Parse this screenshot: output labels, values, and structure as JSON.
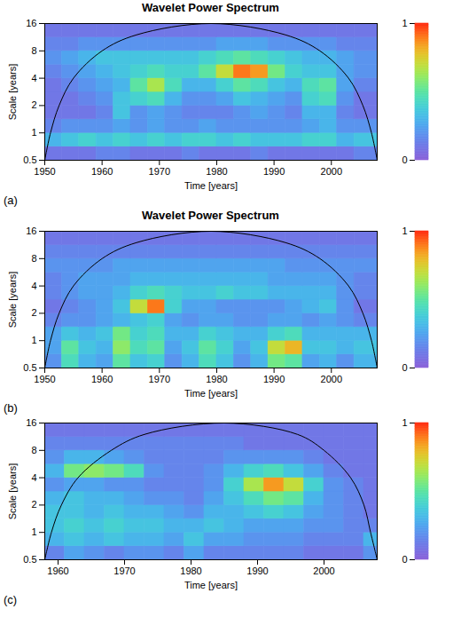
{
  "chart_data": [
    {
      "type": "heatmap",
      "title": "Wavelet Power Spectrum",
      "panel": "(a)",
      "x_label": "Time [years]",
      "y_label": "Scale [years]",
      "xlim": [
        1950,
        2008
      ],
      "xticks": [
        1950,
        1960,
        1970,
        1980,
        1990,
        2000
      ],
      "ylim": [
        0.5,
        16
      ],
      "yticks": [
        0.5,
        1,
        2,
        4,
        8,
        16
      ],
      "log": "y",
      "time_edges": [
        1950,
        1953,
        1956,
        1959,
        1962,
        1965,
        1968,
        1971,
        1974,
        1977,
        1980,
        1983,
        1986,
        1989,
        1992,
        1995,
        1998,
        2001,
        2004,
        2008
      ],
      "scale_edges": [
        0.5,
        0.707,
        1,
        1.414,
        2,
        2.828,
        4,
        5.657,
        8,
        11.31,
        16
      ],
      "power": [
        [
          0.1,
          0.1,
          0.1,
          0.15,
          0.15,
          0.1,
          0.1,
          0.1,
          0.15,
          0.1,
          0.1,
          0.1,
          0.15,
          0.1,
          0.1,
          0.1,
          0.1,
          0.1,
          0.15
        ],
        [
          0.3,
          0.35,
          0.4,
          0.35,
          0.4,
          0.35,
          0.4,
          0.35,
          0.4,
          0.4,
          0.35,
          0.4,
          0.35,
          0.35,
          0.35,
          0.4,
          0.4,
          0.3,
          0.35
        ],
        [
          0.15,
          0.2,
          0.2,
          0.2,
          0.25,
          0.2,
          0.25,
          0.2,
          0.2,
          0.25,
          0.2,
          0.2,
          0.2,
          0.2,
          0.2,
          0.25,
          0.3,
          0.2,
          0.2
        ],
        [
          0.1,
          0.1,
          0.1,
          0.15,
          0.35,
          0.2,
          0.25,
          0.2,
          0.15,
          0.15,
          0.15,
          0.2,
          0.25,
          0.2,
          0.15,
          0.3,
          0.3,
          0.15,
          0.1
        ],
        [
          0.1,
          0.1,
          0.15,
          0.2,
          0.35,
          0.4,
          0.45,
          0.3,
          0.2,
          0.2,
          0.25,
          0.35,
          0.3,
          0.25,
          0.2,
          0.4,
          0.45,
          0.2,
          0.1
        ],
        [
          0.1,
          0.15,
          0.2,
          0.25,
          0.3,
          0.5,
          0.65,
          0.45,
          0.3,
          0.3,
          0.4,
          0.5,
          0.45,
          0.35,
          0.3,
          0.45,
          0.5,
          0.25,
          0.15
        ],
        [
          0.15,
          0.2,
          0.25,
          0.3,
          0.35,
          0.4,
          0.45,
          0.4,
          0.4,
          0.5,
          0.7,
          0.9,
          0.85,
          0.55,
          0.4,
          0.35,
          0.35,
          0.25,
          0.2
        ],
        [
          0.2,
          0.25,
          0.3,
          0.35,
          0.35,
          0.35,
          0.35,
          0.35,
          0.35,
          0.4,
          0.45,
          0.5,
          0.45,
          0.4,
          0.35,
          0.3,
          0.3,
          0.25,
          0.2
        ],
        [
          0.15,
          0.15,
          0.2,
          0.2,
          0.2,
          0.2,
          0.2,
          0.2,
          0.2,
          0.2,
          0.25,
          0.25,
          0.25,
          0.2,
          0.2,
          0.2,
          0.2,
          0.15,
          0.15
        ],
        [
          0.1,
          0.1,
          0.1,
          0.1,
          0.1,
          0.1,
          0.1,
          0.1,
          0.1,
          0.1,
          0.1,
          0.1,
          0.1,
          0.1,
          0.1,
          0.1,
          0.1,
          0.1,
          0.1
        ]
      ],
      "cone_of_influence": {
        "x": [
          1950,
          1951,
          1952.5,
          1955,
          1960,
          1966,
          1979,
          1992,
          1998,
          2003,
          2005.5,
          2007,
          2008
        ],
        "y": [
          0.5,
          1,
          2,
          4,
          8,
          12,
          16,
          12,
          8,
          4,
          2,
          1,
          0.5
        ]
      },
      "color_bar": {
        "range": [
          0,
          1
        ],
        "ticks": [
          0,
          1
        ]
      }
    },
    {
      "type": "heatmap",
      "title": "Wavelet Power Spectrum",
      "panel": "(b)",
      "x_label": "Time [years]",
      "y_label": "Scale [years]",
      "xlim": [
        1950,
        2008
      ],
      "xticks": [
        1950,
        1960,
        1970,
        1980,
        1990,
        2000
      ],
      "ylim": [
        0.5,
        16
      ],
      "yticks": [
        0.5,
        1,
        2,
        4,
        8,
        16
      ],
      "log": "y",
      "time_edges": [
        1950,
        1953,
        1956,
        1959,
        1962,
        1965,
        1968,
        1971,
        1974,
        1977,
        1980,
        1983,
        1986,
        1989,
        1992,
        1995,
        1998,
        2001,
        2004,
        2008
      ],
      "scale_edges": [
        0.5,
        0.707,
        1,
        1.414,
        2,
        2.828,
        4,
        5.657,
        8,
        11.31,
        16
      ],
      "power": [
        [
          0.2,
          0.45,
          0.3,
          0.25,
          0.5,
          0.35,
          0.4,
          0.2,
          0.3,
          0.45,
          0.35,
          0.2,
          0.3,
          0.55,
          0.5,
          0.25,
          0.3,
          0.2,
          0.3
        ],
        [
          0.25,
          0.5,
          0.35,
          0.3,
          0.6,
          0.45,
          0.5,
          0.25,
          0.35,
          0.5,
          0.4,
          0.25,
          0.35,
          0.7,
          0.8,
          0.35,
          0.35,
          0.3,
          0.35
        ],
        [
          0.25,
          0.35,
          0.3,
          0.35,
          0.55,
          0.4,
          0.45,
          0.3,
          0.3,
          0.4,
          0.35,
          0.3,
          0.3,
          0.4,
          0.45,
          0.3,
          0.3,
          0.3,
          0.3
        ],
        [
          0.15,
          0.2,
          0.2,
          0.25,
          0.3,
          0.35,
          0.4,
          0.25,
          0.2,
          0.25,
          0.25,
          0.2,
          0.2,
          0.25,
          0.25,
          0.2,
          0.25,
          0.2,
          0.15
        ],
        [
          0.1,
          0.15,
          0.2,
          0.25,
          0.35,
          0.7,
          0.9,
          0.4,
          0.25,
          0.25,
          0.2,
          0.2,
          0.2,
          0.2,
          0.25,
          0.3,
          0.35,
          0.2,
          0.1
        ],
        [
          0.15,
          0.2,
          0.25,
          0.25,
          0.3,
          0.4,
          0.45,
          0.4,
          0.35,
          0.35,
          0.4,
          0.35,
          0.35,
          0.3,
          0.3,
          0.3,
          0.3,
          0.2,
          0.15
        ],
        [
          0.15,
          0.2,
          0.25,
          0.25,
          0.25,
          0.3,
          0.3,
          0.3,
          0.3,
          0.3,
          0.3,
          0.3,
          0.3,
          0.25,
          0.25,
          0.25,
          0.25,
          0.2,
          0.15
        ],
        [
          0.2,
          0.2,
          0.2,
          0.2,
          0.25,
          0.25,
          0.25,
          0.25,
          0.25,
          0.25,
          0.25,
          0.25,
          0.25,
          0.25,
          0.2,
          0.2,
          0.2,
          0.2,
          0.2
        ],
        [
          0.15,
          0.15,
          0.15,
          0.15,
          0.15,
          0.15,
          0.15,
          0.15,
          0.15,
          0.15,
          0.15,
          0.15,
          0.15,
          0.15,
          0.15,
          0.15,
          0.15,
          0.15,
          0.15
        ],
        [
          0.1,
          0.1,
          0.1,
          0.1,
          0.1,
          0.1,
          0.1,
          0.1,
          0.1,
          0.1,
          0.1,
          0.1,
          0.1,
          0.1,
          0.1,
          0.1,
          0.1,
          0.1,
          0.1
        ]
      ],
      "cone_of_influence": {
        "x": [
          1950,
          1951,
          1952.5,
          1955,
          1960,
          1966,
          1979,
          1992,
          1998,
          2003,
          2005.5,
          2007,
          2008
        ],
        "y": [
          0.5,
          1,
          2,
          4,
          8,
          12,
          16,
          12,
          8,
          4,
          2,
          1,
          0.5
        ]
      },
      "color_bar": {
        "range": [
          0,
          1
        ],
        "ticks": [
          0,
          1
        ]
      }
    },
    {
      "type": "heatmap",
      "panel": "(c)",
      "x_label": "Time [years]",
      "y_label": "Scale [years]",
      "xlim": [
        1958,
        2008
      ],
      "xticks": [
        1960,
        1970,
        1980,
        1990,
        2000
      ],
      "ylim": [
        0.5,
        16
      ],
      "yticks": [
        0.5,
        1,
        2,
        4,
        8,
        16
      ],
      "log": "y",
      "time_edges": [
        1958,
        1961,
        1964,
        1967,
        1970,
        1973,
        1976,
        1979,
        1982,
        1985,
        1988,
        1991,
        1994,
        1997,
        2000,
        2003,
        2006,
        2008
      ],
      "scale_edges": [
        0.5,
        0.707,
        1,
        1.414,
        2,
        2.828,
        4,
        5.657,
        8,
        11.31,
        16
      ],
      "power": [
        [
          0.15,
          0.25,
          0.2,
          0.15,
          0.2,
          0.2,
          0.15,
          0.25,
          0.15,
          0.15,
          0.15,
          0.15,
          0.15,
          0.1,
          0.1,
          0.1,
          0.2
        ],
        [
          0.3,
          0.35,
          0.3,
          0.35,
          0.3,
          0.3,
          0.25,
          0.35,
          0.25,
          0.25,
          0.2,
          0.2,
          0.2,
          0.15,
          0.15,
          0.15,
          0.3
        ],
        [
          0.35,
          0.4,
          0.35,
          0.4,
          0.35,
          0.35,
          0.3,
          0.3,
          0.35,
          0.3,
          0.25,
          0.25,
          0.25,
          0.2,
          0.2,
          0.15,
          0.15
        ],
        [
          0.35,
          0.35,
          0.3,
          0.35,
          0.3,
          0.3,
          0.25,
          0.2,
          0.3,
          0.3,
          0.35,
          0.4,
          0.35,
          0.25,
          0.2,
          0.15,
          0.1
        ],
        [
          0.3,
          0.35,
          0.3,
          0.3,
          0.25,
          0.2,
          0.2,
          0.15,
          0.25,
          0.35,
          0.45,
          0.55,
          0.5,
          0.3,
          0.2,
          0.15,
          0.1
        ],
        [
          0.2,
          0.25,
          0.25,
          0.2,
          0.2,
          0.15,
          0.15,
          0.15,
          0.2,
          0.4,
          0.65,
          0.85,
          0.7,
          0.4,
          0.2,
          0.15,
          0.1
        ],
        [
          0.3,
          0.55,
          0.6,
          0.55,
          0.45,
          0.2,
          0.15,
          0.15,
          0.2,
          0.3,
          0.4,
          0.45,
          0.35,
          0.25,
          0.15,
          0.1,
          0.1
        ],
        [
          0.2,
          0.3,
          0.3,
          0.25,
          0.2,
          0.15,
          0.15,
          0.15,
          0.15,
          0.2,
          0.2,
          0.2,
          0.2,
          0.15,
          0.1,
          0.1,
          0.1
        ],
        [
          0.15,
          0.15,
          0.15,
          0.15,
          0.15,
          0.15,
          0.15,
          0.15,
          0.15,
          0.15,
          0.1,
          0.1,
          0.1,
          0.1,
          0.1,
          0.1,
          0.1
        ],
        [
          0.1,
          0.1,
          0.1,
          0.1,
          0.1,
          0.1,
          0.1,
          0.1,
          0.1,
          0.1,
          0.1,
          0.1,
          0.1,
          0.1,
          0.1,
          0.1,
          0.1
        ]
      ],
      "cone_of_influence": {
        "x": [
          1958,
          1959,
          1960.5,
          1963,
          1968,
          1973,
          1985,
          1996,
          2000,
          2004,
          2006,
          2007,
          2008
        ],
        "y": [
          0.5,
          1,
          2,
          4,
          8,
          12,
          16,
          12,
          8,
          4,
          2,
          1,
          0.5
        ]
      },
      "color_bar": {
        "range": [
          0,
          1
        ],
        "ticks": [
          0,
          1
        ]
      }
    }
  ]
}
